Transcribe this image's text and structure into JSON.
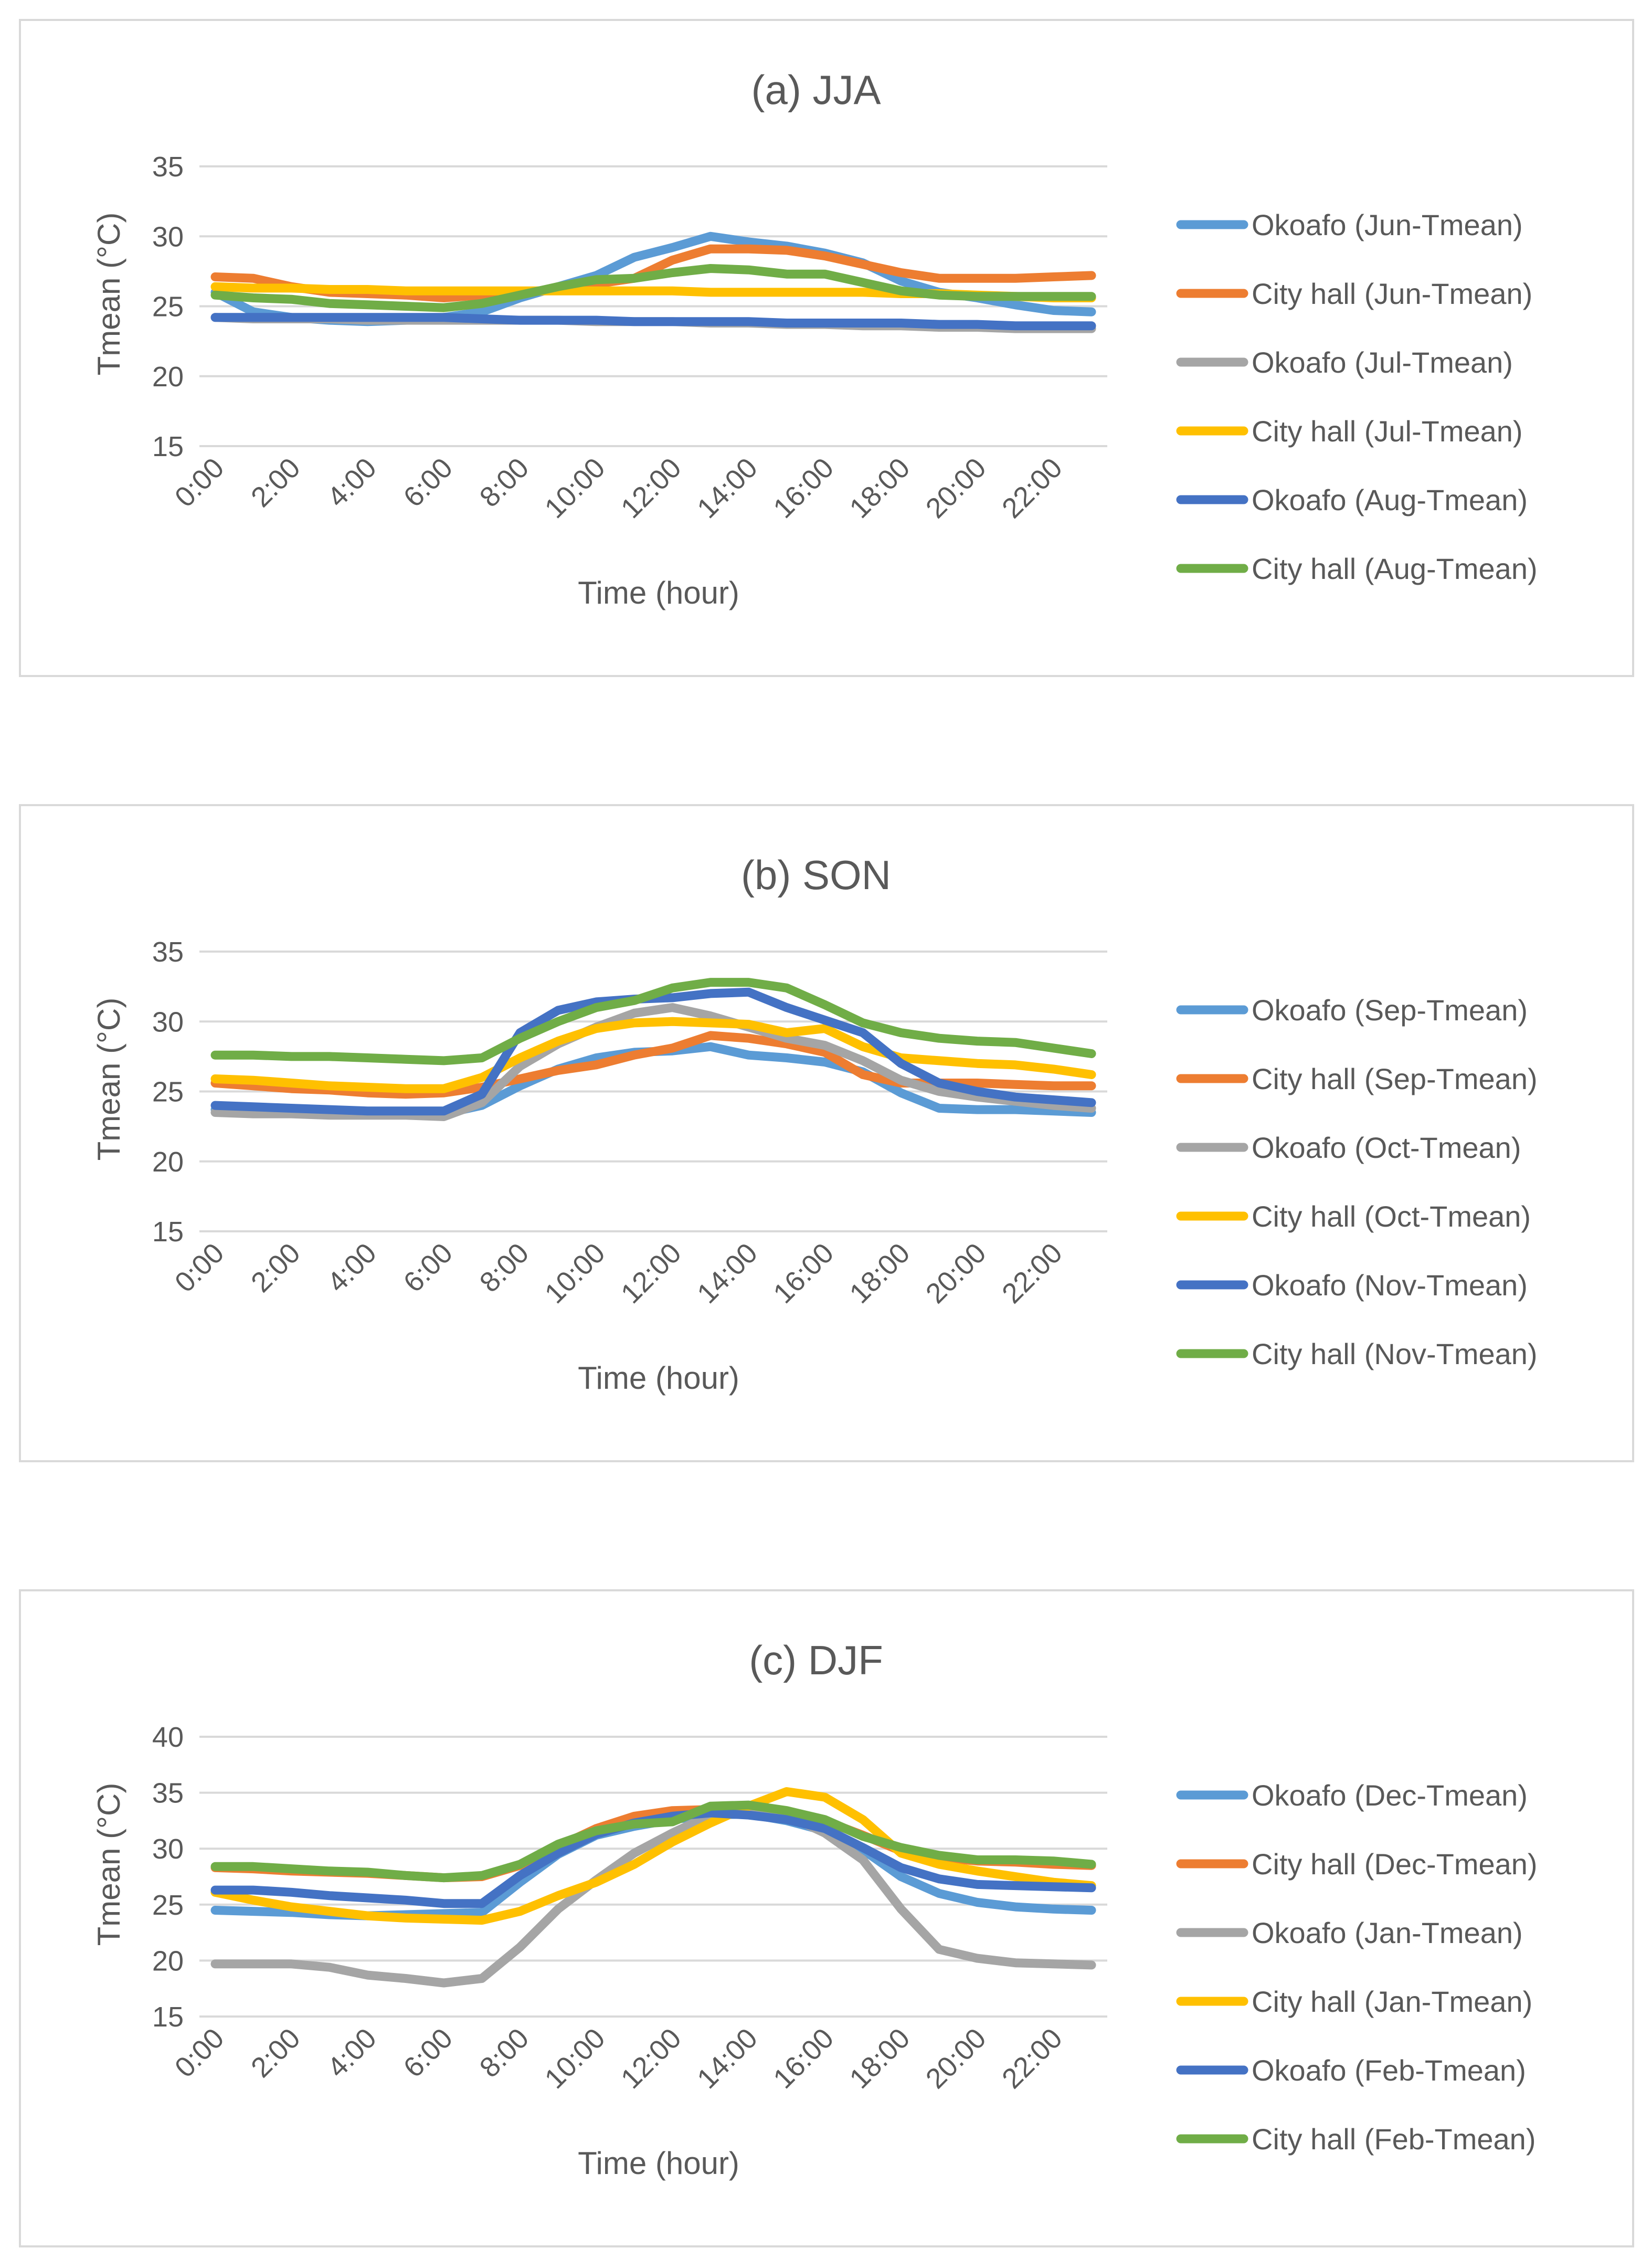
{
  "chart_data": [
    {
      "type": "line",
      "title": "(a) JJA",
      "xlabel": "Time (hour)",
      "ylabel": "Tmean (°C)",
      "ylim": [
        15,
        35
      ],
      "yticks": [
        "15",
        "20",
        "25",
        "30",
        "35"
      ],
      "xtick_labels": [
        "0:00",
        "2:00",
        "4:00",
        "6:00",
        "8:00",
        "10:00",
        "12:00",
        "14:00",
        "16:00",
        "18:00",
        "20:00",
        "22:00"
      ],
      "x": [
        0,
        1,
        2,
        3,
        4,
        5,
        6,
        7,
        8,
        9,
        10,
        11,
        12,
        13,
        14,
        15,
        16,
        17,
        18,
        19,
        20,
        21,
        22,
        23
      ],
      "series": [
        {
          "name": "Okoafo (Jun-Tmean)",
          "color": "#5b9bd5",
          "values": [
            26.0,
            24.6,
            24.2,
            24.0,
            23.9,
            24.0,
            24.2,
            24.6,
            25.6,
            26.4,
            27.2,
            28.5,
            29.2,
            30.0,
            29.6,
            29.3,
            28.8,
            28.1,
            26.8,
            26.0,
            25.6,
            25.1,
            24.7,
            24.6
          ]
        },
        {
          "name": "City hall (Jun-Tmean)",
          "color": "#ed7d31",
          "values": [
            27.1,
            27.0,
            26.4,
            26.0,
            25.9,
            25.8,
            25.6,
            25.8,
            26.0,
            26.2,
            26.6,
            27.0,
            28.3,
            29.1,
            29.1,
            29.0,
            28.6,
            28.0,
            27.4,
            27.0,
            27.0,
            27.0,
            27.1,
            27.2
          ]
        },
        {
          "name": "Okoafo (Jul-Tmean)",
          "color": "#a5a5a5",
          "values": [
            24.2,
            24.1,
            24.1,
            24.1,
            24.0,
            24.0,
            24.0,
            24.0,
            24.0,
            24.0,
            23.9,
            23.9,
            23.9,
            23.8,
            23.8,
            23.7,
            23.7,
            23.6,
            23.6,
            23.5,
            23.5,
            23.4,
            23.4,
            23.4
          ]
        },
        {
          "name": "City hall (Jul-Tmean)",
          "color": "#ffc000",
          "values": [
            26.4,
            26.3,
            26.3,
            26.2,
            26.2,
            26.1,
            26.1,
            26.1,
            26.1,
            26.1,
            26.1,
            26.1,
            26.1,
            26.0,
            26.0,
            26.0,
            26.0,
            26.0,
            25.9,
            25.9,
            25.8,
            25.7,
            25.6,
            25.6
          ]
        },
        {
          "name": "Okoafo (Aug-Tmean)",
          "color": "#4472c4",
          "values": [
            24.2,
            24.2,
            24.2,
            24.2,
            24.2,
            24.2,
            24.2,
            24.1,
            24.0,
            24.0,
            24.0,
            23.9,
            23.9,
            23.9,
            23.9,
            23.8,
            23.8,
            23.8,
            23.8,
            23.7,
            23.7,
            23.6,
            23.6,
            23.6
          ]
        },
        {
          "name": "City hall (Aug-Tmean)",
          "color": "#70ad47",
          "values": [
            25.8,
            25.6,
            25.5,
            25.2,
            25.1,
            25.0,
            24.9,
            25.2,
            25.8,
            26.4,
            26.9,
            27.0,
            27.4,
            27.7,
            27.6,
            27.3,
            27.3,
            26.7,
            26.1,
            25.8,
            25.7,
            25.7,
            25.7,
            25.7
          ]
        }
      ]
    },
    {
      "type": "line",
      "title": "(b) SON",
      "xlabel": "Time (hour)",
      "ylabel": "Tmean (°C)",
      "ylim": [
        15,
        35
      ],
      "yticks": [
        "15",
        "20",
        "25",
        "30",
        "35"
      ],
      "xtick_labels": [
        "0:00",
        "2:00",
        "4:00",
        "6:00",
        "8:00",
        "10:00",
        "12:00",
        "14:00",
        "16:00",
        "18:00",
        "20:00",
        "22:00"
      ],
      "x": [
        0,
        1,
        2,
        3,
        4,
        5,
        6,
        7,
        8,
        9,
        10,
        11,
        12,
        13,
        14,
        15,
        16,
        17,
        18,
        19,
        20,
        21,
        22,
        23
      ],
      "series": [
        {
          "name": "Okoafo (Sep-Tmean)",
          "color": "#5b9bd5",
          "values": [
            23.7,
            23.6,
            23.5,
            23.5,
            23.4,
            23.4,
            23.4,
            24.0,
            25.4,
            26.6,
            27.4,
            27.8,
            27.9,
            28.2,
            27.6,
            27.4,
            27.1,
            26.4,
            24.9,
            23.8,
            23.7,
            23.7,
            23.6,
            23.5
          ]
        },
        {
          "name": "City hall (Sep-Tmean)",
          "color": "#ed7d31",
          "values": [
            25.6,
            25.4,
            25.2,
            25.1,
            24.9,
            24.8,
            24.9,
            25.3,
            25.9,
            26.5,
            26.9,
            27.6,
            28.1,
            29.0,
            28.8,
            28.4,
            27.8,
            26.2,
            25.6,
            25.6,
            25.6,
            25.5,
            25.4,
            25.4
          ]
        },
        {
          "name": "Okoafo (Oct-Tmean)",
          "color": "#a5a5a5",
          "values": [
            23.5,
            23.4,
            23.4,
            23.3,
            23.3,
            23.3,
            23.2,
            24.2,
            26.8,
            28.4,
            29.6,
            30.6,
            31.0,
            30.4,
            29.6,
            28.8,
            28.3,
            27.2,
            25.8,
            25.0,
            24.6,
            24.3,
            24.0,
            23.8
          ]
        },
        {
          "name": "City hall (Oct-Tmean)",
          "color": "#ffc000",
          "values": [
            25.9,
            25.8,
            25.6,
            25.4,
            25.3,
            25.2,
            25.2,
            26.0,
            27.4,
            28.6,
            29.5,
            29.9,
            30.0,
            29.9,
            29.8,
            29.2,
            29.5,
            28.2,
            27.4,
            27.2,
            27.0,
            26.9,
            26.6,
            26.2
          ]
        },
        {
          "name": "Okoafo (Nov-Tmean)",
          "color": "#4472c4",
          "values": [
            24.0,
            23.9,
            23.8,
            23.7,
            23.6,
            23.6,
            23.6,
            24.8,
            29.2,
            30.8,
            31.4,
            31.6,
            31.7,
            32.0,
            32.1,
            31.0,
            30.1,
            29.2,
            27.0,
            25.6,
            25.0,
            24.6,
            24.4,
            24.2
          ]
        },
        {
          "name": "City hall (Nov-Tmean)",
          "color": "#70ad47",
          "values": [
            27.6,
            27.6,
            27.5,
            27.5,
            27.4,
            27.3,
            27.2,
            27.4,
            28.8,
            30.0,
            31.0,
            31.5,
            32.4,
            32.8,
            32.8,
            32.4,
            31.2,
            29.9,
            29.2,
            28.8,
            28.6,
            28.5,
            28.1,
            27.7
          ]
        }
      ]
    },
    {
      "type": "line",
      "title": "(c) DJF",
      "xlabel": "Time (hour)",
      "ylabel": "Tmean (°C)",
      "ylim": [
        15,
        40
      ],
      "yticks": [
        "15",
        "20",
        "25",
        "30",
        "35",
        "40"
      ],
      "xtick_labels": [
        "0:00",
        "2:00",
        "4:00",
        "6:00",
        "8:00",
        "10:00",
        "12:00",
        "14:00",
        "16:00",
        "18:00",
        "20:00",
        "22:00"
      ],
      "x": [
        0,
        1,
        2,
        3,
        4,
        5,
        6,
        7,
        8,
        9,
        10,
        11,
        12,
        13,
        14,
        15,
        16,
        17,
        18,
        19,
        20,
        21,
        22,
        23
      ],
      "series": [
        {
          "name": "Okoafo (Dec-Tmean)",
          "color": "#5b9bd5",
          "values": [
            24.5,
            24.4,
            24.3,
            24.1,
            24.0,
            24.1,
            24.2,
            24.3,
            27.0,
            29.5,
            31.2,
            32.0,
            32.6,
            33.0,
            33.1,
            32.5,
            31.6,
            29.9,
            27.5,
            26.0,
            25.2,
            24.8,
            24.6,
            24.5
          ]
        },
        {
          "name": "City hall (Dec-Tmean)",
          "color": "#ed7d31",
          "values": [
            28.3,
            28.2,
            28.0,
            27.9,
            27.8,
            27.6,
            27.4,
            27.5,
            28.5,
            30.2,
            31.8,
            32.9,
            33.4,
            33.5,
            33.6,
            33.2,
            32.5,
            31.2,
            29.8,
            29.2,
            28.9,
            28.8,
            28.6,
            28.5
          ]
        },
        {
          "name": "Okoafo (Jan-Tmean)",
          "color": "#a5a5a5",
          "values": [
            19.7,
            19.7,
            19.7,
            19.4,
            18.7,
            18.4,
            18.0,
            18.4,
            21.2,
            24.6,
            27.2,
            29.6,
            31.4,
            33.0,
            33.4,
            33.0,
            31.4,
            29.0,
            24.6,
            21.0,
            20.2,
            19.8,
            19.7,
            19.6
          ]
        },
        {
          "name": "City hall (Jan-Tmean)",
          "color": "#ffc000",
          "values": [
            26.1,
            25.4,
            24.8,
            24.4,
            24.0,
            23.8,
            23.7,
            23.6,
            24.4,
            25.8,
            27.0,
            28.6,
            30.6,
            32.3,
            33.8,
            35.1,
            34.6,
            32.6,
            29.6,
            28.6,
            28.0,
            27.5,
            27.0,
            26.7
          ]
        },
        {
          "name": "Okoafo (Feb-Tmean)",
          "color": "#4472c4",
          "values": [
            26.3,
            26.3,
            26.1,
            25.8,
            25.6,
            25.4,
            25.1,
            25.1,
            27.6,
            29.6,
            31.3,
            32.3,
            32.9,
            33.2,
            33.0,
            32.6,
            31.8,
            30.1,
            28.3,
            27.3,
            26.8,
            26.7,
            26.6,
            26.5
          ]
        },
        {
          "name": "City hall (Feb-Tmean)",
          "color": "#70ad47",
          "values": [
            28.4,
            28.4,
            28.2,
            28.0,
            27.9,
            27.6,
            27.4,
            27.6,
            28.6,
            30.4,
            31.6,
            32.2,
            32.4,
            33.8,
            33.9,
            33.4,
            32.6,
            31.1,
            30.1,
            29.4,
            29.0,
            29.0,
            28.9,
            28.6
          ]
        }
      ]
    }
  ]
}
